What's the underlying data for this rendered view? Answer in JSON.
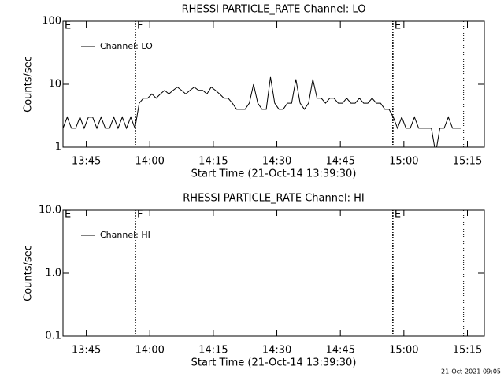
{
  "chart_data": [
    {
      "type": "line",
      "title": "RHESSI PARTICLE_RATE Channel: LO",
      "xlabel": "Start Time (21-Oct-14 13:39:30)",
      "ylabel": "Counts/sec",
      "log_y": true,
      "legend": "upper left",
      "xlim": [
        0,
        99.5
      ],
      "ylim": [
        1,
        100
      ],
      "xticks": [
        {
          "value": 5.5,
          "label": "13:45"
        },
        {
          "value": 20.5,
          "label": "14:00"
        },
        {
          "value": 35.5,
          "label": "14:15"
        },
        {
          "value": 50.5,
          "label": "14:30"
        },
        {
          "value": 65.5,
          "label": "14:45"
        },
        {
          "value": 80.5,
          "label": "15:00"
        },
        {
          "value": 95.5,
          "label": "15:15"
        }
      ],
      "yticks": [
        1,
        10,
        100
      ],
      "annotations": [
        {
          "x": 0,
          "label": "E"
        },
        {
          "x": 17.1,
          "label": "F",
          "line": true
        },
        {
          "x": 77.9,
          "label": "E",
          "line": true
        }
      ],
      "vlines": [
        94.6
      ],
      "x": [
        0,
        1,
        2,
        3,
        4,
        5,
        6,
        7,
        8,
        9,
        10,
        11,
        12,
        13,
        14,
        15,
        16,
        17,
        18,
        19,
        20,
        21,
        22,
        23,
        24,
        25,
        26,
        27,
        28,
        29,
        30,
        31,
        32,
        33,
        34,
        35,
        36,
        37,
        38,
        39,
        40,
        41,
        42,
        43,
        44,
        45,
        46,
        47,
        48,
        49,
        50,
        51,
        52,
        53,
        54,
        55,
        56,
        57,
        58,
        59,
        60,
        61,
        62,
        63,
        64,
        65,
        66,
        67,
        68,
        69,
        70,
        71,
        72,
        73,
        74,
        75,
        76,
        77,
        78,
        79,
        80,
        81,
        82,
        83,
        84,
        85,
        86,
        87,
        88,
        89,
        90,
        91,
        92,
        93,
        94
      ],
      "series": [
        {
          "name": "Channel: LO",
          "color": "#000000",
          "values": [
            2,
            3,
            2,
            2,
            3,
            2,
            3,
            3,
            2,
            3,
            2,
            2,
            3,
            2,
            3,
            2,
            3,
            2,
            5,
            6,
            6,
            7,
            6,
            7,
            8,
            7,
            8,
            9,
            8,
            7,
            8,
            9,
            8,
            8,
            7,
            9,
            8,
            7,
            6,
            6,
            5,
            4,
            4,
            4,
            5,
            10,
            5,
            4,
            4,
            13,
            5,
            4,
            4,
            5,
            5,
            12,
            5,
            4,
            5,
            12,
            6,
            6,
            5,
            6,
            6,
            5,
            5,
            6,
            5,
            5,
            6,
            5,
            5,
            6,
            5,
            5,
            4,
            4,
            3,
            2,
            3,
            2,
            2,
            3,
            2,
            2,
            2,
            2,
            0.8,
            2,
            2,
            3,
            2,
            2,
            2
          ]
        }
      ]
    },
    {
      "type": "line",
      "title": "RHESSI PARTICLE_RATE Channel: HI",
      "xlabel": "Start Time (21-Oct-14 13:39:30)",
      "ylabel": "Counts/sec",
      "log_y": true,
      "legend": "upper left",
      "xlim": [
        0,
        99.5
      ],
      "ylim": [
        0.1,
        10
      ],
      "xticks": [
        {
          "value": 5.5,
          "label": "13:45"
        },
        {
          "value": 20.5,
          "label": "14:00"
        },
        {
          "value": 35.5,
          "label": "14:15"
        },
        {
          "value": 50.5,
          "label": "14:30"
        },
        {
          "value": 65.5,
          "label": "14:45"
        },
        {
          "value": 80.5,
          "label": "15:00"
        },
        {
          "value": 95.5,
          "label": "15:15"
        }
      ],
      "yticks": [
        0.1,
        {
          "value": 1,
          "label": "1.0"
        },
        {
          "value": 10,
          "label": "10.0"
        }
      ],
      "annotations": [
        {
          "x": 0,
          "label": "E"
        },
        {
          "x": 17.1,
          "label": "F",
          "line": true
        },
        {
          "x": 77.9,
          "label": "E",
          "line": true
        }
      ],
      "vlines": [
        94.6
      ],
      "x": [],
      "series": [
        {
          "name": "Channel: HI",
          "color": "#000000",
          "values": []
        }
      ]
    }
  ],
  "footer": "21-Oct-2021 09:05"
}
